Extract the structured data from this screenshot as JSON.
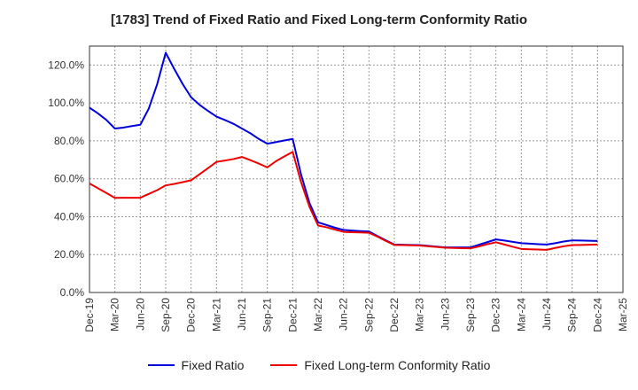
{
  "chart_data": {
    "type": "line",
    "title": "[1783]  Trend of Fixed Ratio and Fixed Long-term Conformity Ratio",
    "xlabel": "",
    "ylabel": "",
    "ylim": [
      0,
      130
    ],
    "y_ticks": [
      0,
      20,
      40,
      60,
      80,
      100,
      120
    ],
    "y_tick_labels": [
      "0.0%",
      "20.0%",
      "40.0%",
      "60.0%",
      "80.0%",
      "100.0%",
      "120.0%"
    ],
    "x_tick_labels": [
      "Dec-19",
      "Mar-20",
      "Jun-20",
      "Sep-20",
      "Dec-20",
      "Mar-21",
      "Jun-21",
      "Sep-21",
      "Dec-21",
      "Mar-22",
      "Jun-22",
      "Sep-22",
      "Dec-22",
      "Mar-23",
      "Jun-23",
      "Sep-23",
      "Dec-23",
      "Mar-24",
      "Jun-24",
      "Sep-24",
      "Dec-24",
      "Mar-25"
    ],
    "grid": true,
    "legend_position": "bottom",
    "x": [
      "Dec-19",
      "Jan-20",
      "Feb-20",
      "Mar-20",
      "Apr-20",
      "May-20",
      "Jun-20",
      "Jul-20",
      "Aug-20",
      "Sep-20",
      "Oct-20",
      "Nov-20",
      "Dec-20",
      "Jan-21",
      "Feb-21",
      "Mar-21",
      "Apr-21",
      "May-21",
      "Jun-21",
      "Jul-21",
      "Aug-21",
      "Sep-21",
      "Oct-21",
      "Nov-21",
      "Dec-21",
      "Jan-22",
      "Feb-22",
      "Mar-22",
      "Apr-22",
      "May-22",
      "Jun-22",
      "Jul-22",
      "Aug-22",
      "Sep-22",
      "Oct-22",
      "Nov-22",
      "Dec-22",
      "Jan-23",
      "Feb-23",
      "Mar-23",
      "Apr-23",
      "May-23",
      "Jun-23",
      "Jul-23",
      "Aug-23",
      "Sep-23",
      "Oct-23",
      "Nov-23",
      "Dec-23",
      "Jan-24",
      "Feb-24",
      "Mar-24",
      "Apr-24",
      "May-24",
      "Jun-24",
      "Jul-24",
      "Aug-24",
      "Sep-24",
      "Oct-24",
      "Nov-24",
      "Dec-24"
    ],
    "series": [
      {
        "name": "Fixed Ratio",
        "color": "#0000dd",
        "values": [
          97.5,
          94.5,
          91,
          86.5,
          87,
          87.8,
          88.5,
          97,
          110,
          126.5,
          118,
          110,
          103,
          99,
          95.8,
          92.8,
          91,
          89,
          86.5,
          84,
          81,
          78.5,
          79.3,
          80.2,
          81,
          62,
          47,
          37,
          35.6,
          34.2,
          33,
          32.7,
          32.4,
          32.2,
          29.8,
          27.5,
          25.3,
          25.2,
          25.1,
          25,
          24.6,
          24.2,
          23.8,
          23.8,
          23.8,
          23.8,
          25.2,
          26.6,
          28,
          27.4,
          26.7,
          26,
          25.8,
          25.5,
          25.3,
          26,
          26.9,
          27.5,
          27.4,
          27.3,
          27.2
        ]
      },
      {
        "name": "Fixed Long-term Conformity Ratio",
        "color": "#ee0000",
        "values": [
          57.5,
          55,
          52.5,
          49.9,
          50,
          50,
          50,
          52,
          54,
          56.5,
          57.3,
          58.2,
          59.2,
          62.4,
          65.6,
          68.9,
          69.6,
          70.4,
          71.5,
          69.8,
          68,
          66,
          69.2,
          71.8,
          74.2,
          58,
          45,
          35.3,
          34.4,
          33.2,
          32,
          31.8,
          31.7,
          31.5,
          29.5,
          27.2,
          25.1,
          25,
          24.9,
          24.8,
          24.4,
          24,
          23.6,
          23.5,
          23.4,
          23.3,
          24.3,
          25.5,
          26.5,
          25.3,
          24.1,
          23,
          22.8,
          22.7,
          22.5,
          23.5,
          24.4,
          25,
          25.1,
          25.2,
          25.3
        ]
      }
    ]
  }
}
